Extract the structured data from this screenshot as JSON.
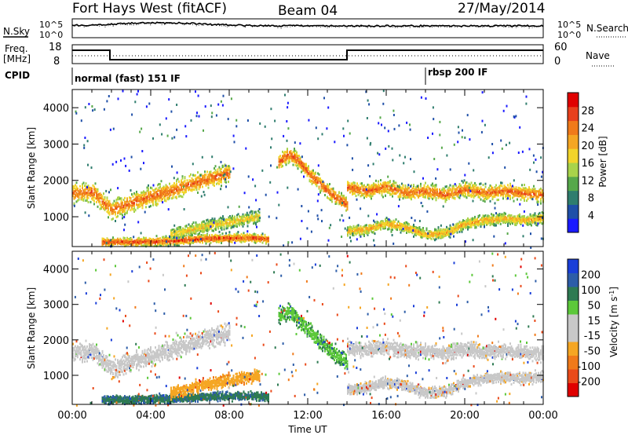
{
  "header": {
    "station": "Fort Hays West (fitACF)",
    "beam": "Beam 04",
    "date": "27/May/2014"
  },
  "top_panels": {
    "nsky_label": "N.Sky",
    "nsearch_label": "N.Search",
    "noise_ticks_left": [
      "10^5",
      "10^0"
    ],
    "noise_ticks_right": [
      "10^5",
      "10^0"
    ],
    "freq_label": "Freq.",
    "freq_unit": "[MHz]",
    "freq_ticks": [
      "18",
      "8"
    ],
    "nave_label": "Nave",
    "nave_ticks": [
      "60",
      "0"
    ],
    "cpid_label": "CPID",
    "cpid_modes": [
      "normal (fast) 151 IF",
      "rbsp 200 IF"
    ]
  },
  "colors": {
    "power_scale": [
      "#1a1aff",
      "#1f4fa8",
      "#2f7d6e",
      "#56a84a",
      "#a8d34a",
      "#f2d42a",
      "#f5a623",
      "#f07a1a",
      "#e8401c",
      "#e00000"
    ],
    "velocity_scale": [
      "#1a3fd8",
      "#2d5da8",
      "#2e7a52",
      "#5cc83a",
      "#c8c8c8",
      "#c8c8c8",
      "#f5a623",
      "#f07a1a",
      "#ea4a1a",
      "#e00000"
    ]
  },
  "chart_data": [
    {
      "type": "heatmap",
      "panel": "power",
      "xlabel": "",
      "ylabel": "Slant Range [km]",
      "colorbar_label": "Power [dB]",
      "colorbar_ticks": [
        4,
        8,
        12,
        16,
        20,
        24,
        28
      ],
      "x_ticks": [
        "00:00",
        "04:00",
        "08:00",
        "12:00",
        "16:00",
        "20:00",
        "00:00"
      ],
      "x_hours": [
        0,
        24
      ],
      "ylim": [
        180,
        4500
      ],
      "y_ticks": [
        1000,
        2000,
        3000,
        4000
      ],
      "bands": [
        {
          "h": [
            0,
            1,
            2,
            3,
            4,
            5,
            6,
            7,
            8
          ],
          "r": [
            1650,
            1680,
            1180,
            1380,
            1550,
            1700,
            1900,
            2050,
            2200
          ],
          "w": 230,
          "p": 26
        },
        {
          "h": [
            10.5,
            11,
            11.5,
            12,
            12.5,
            13,
            13.5,
            14
          ],
          "r": [
            2500,
            2700,
            2550,
            2200,
            1950,
            1700,
            1500,
            1330
          ],
          "w": 180,
          "p": 27
        },
        {
          "h": [
            14,
            15,
            16,
            17,
            18,
            19,
            20,
            21,
            22,
            23,
            24
          ],
          "r": [
            1800,
            1700,
            1820,
            1650,
            1700,
            1600,
            1750,
            1650,
            1700,
            1650,
            1600
          ],
          "w": 180,
          "p": 26
        },
        {
          "h": [
            14,
            15,
            16,
            17,
            18,
            19,
            20,
            21,
            22,
            23,
            24
          ],
          "r": [
            600,
            650,
            800,
            700,
            500,
            550,
            800,
            900,
            950,
            900,
            950
          ],
          "w": 130,
          "p": 22
        },
        {
          "h": [
            1.5,
            3,
            5,
            7,
            9,
            10
          ],
          "r": [
            300,
            300,
            330,
            400,
            420,
            380
          ],
          "w": 100,
          "p": 28
        },
        {
          "h": [
            5,
            6.5,
            8,
            9,
            9.5
          ],
          "r": [
            500,
            700,
            850,
            950,
            1000
          ],
          "w": 150,
          "p": 20
        }
      ]
    },
    {
      "type": "heatmap",
      "panel": "velocity",
      "xlabel": "Time UT",
      "ylabel": "Slant Range [km]",
      "colorbar_label": "Velocity [m s^-1]",
      "colorbar_ticks": [
        -200,
        -100,
        -50,
        -15,
        15,
        50,
        100,
        200
      ],
      "x_ticks": [
        "00:00",
        "04:00",
        "08:00",
        "12:00",
        "16:00",
        "20:00",
        "00:00"
      ],
      "x_hours": [
        0,
        24
      ],
      "ylim": [
        180,
        4500
      ],
      "y_ticks": [
        1000,
        2000,
        3000,
        4000
      ],
      "bands": [
        {
          "h": [
            0,
            1,
            2,
            3,
            4,
            5,
            6,
            7,
            8
          ],
          "r": [
            1650,
            1680,
            1180,
            1380,
            1550,
            1700,
            1900,
            2050,
            2200
          ],
          "w": 230,
          "v": 0
        },
        {
          "h": [
            10.5,
            11,
            11.5,
            12,
            12.5,
            13,
            13.5,
            14
          ],
          "r": [
            2700,
            2800,
            2600,
            2300,
            2000,
            1750,
            1550,
            1350
          ],
          "w": 200,
          "v": 35
        },
        {
          "h": [
            14,
            15,
            16,
            17,
            18,
            19,
            20,
            21,
            22,
            23,
            24
          ],
          "r": [
            1800,
            1700,
            1820,
            1650,
            1700,
            1600,
            1750,
            1650,
            1700,
            1650,
            1600
          ],
          "w": 180,
          "v": 0
        },
        {
          "h": [
            14,
            15,
            16,
            17,
            18,
            19,
            20,
            21,
            22,
            23,
            24
          ],
          "r": [
            600,
            650,
            800,
            700,
            500,
            550,
            800,
            900,
            950,
            900,
            950
          ],
          "w": 130,
          "v": -5
        },
        {
          "h": [
            1.5,
            3,
            5,
            7,
            9,
            10
          ],
          "r": [
            300,
            300,
            330,
            400,
            420,
            380
          ],
          "w": 100,
          "v": 70
        },
        {
          "h": [
            5,
            6.5,
            8,
            9,
            9.5
          ],
          "r": [
            500,
            700,
            850,
            950,
            1000
          ],
          "w": 150,
          "v": -40
        }
      ]
    }
  ]
}
